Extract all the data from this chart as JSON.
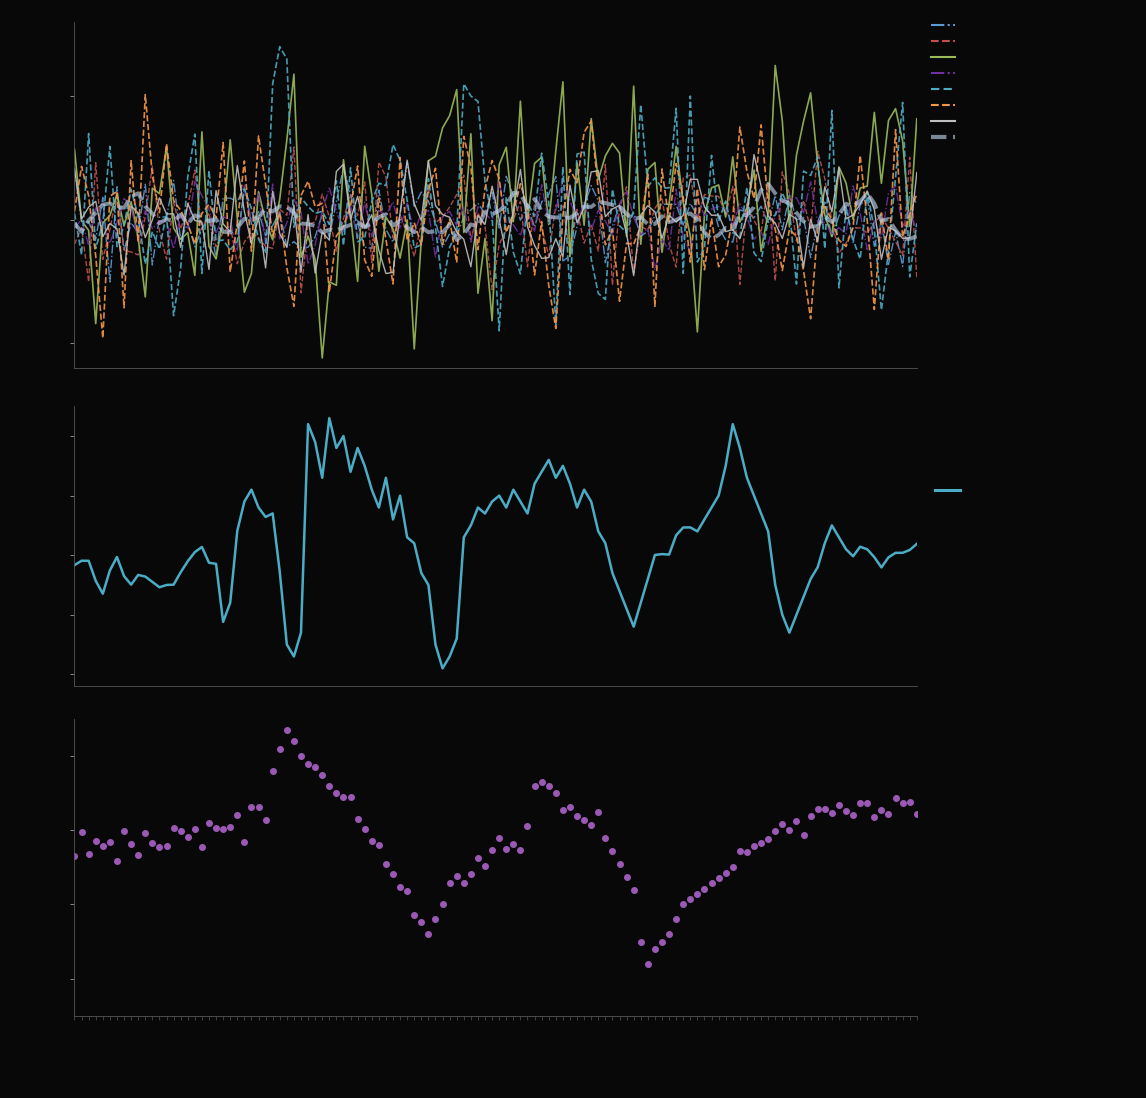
{
  "background_color": "#080808",
  "text_color": "#bbbbbb",
  "n_points": 120,
  "panel1_ylim": [
    -0.6,
    0.8
  ],
  "panel2_ylim": [
    -2.2,
    2.5
  ],
  "panel3_ylim": [
    -2.5,
    1.5
  ],
  "panel1_yticks": [
    -0.5,
    0.0,
    0.5
  ],
  "panel2_yticks": [
    -2.0,
    -1.0,
    0.0,
    1.0,
    2.0
  ],
  "panel3_yticks": [
    -2.0,
    -1.0,
    0.0,
    1.0
  ],
  "series_colors": [
    "#5b9bd5",
    "#c0504d",
    "#9bbb59",
    "#7030a0",
    "#4bacc6",
    "#f79646",
    "#c0c0c0",
    "#b8cce4"
  ],
  "series_linestyles": [
    "dashdot",
    "dashed",
    "solid",
    "dashdot",
    "dashed",
    "dashed",
    "solid",
    "dashed"
  ],
  "series_linewidths": [
    1.0,
    1.0,
    1.2,
    1.0,
    1.2,
    1.2,
    1.0,
    2.8
  ],
  "series_alphas": [
    0.9,
    0.9,
    0.9,
    0.9,
    0.9,
    0.9,
    0.9,
    0.65
  ],
  "total_color": "#4bacc6",
  "total_linewidth": 1.8,
  "purple_color": "#9b59b6",
  "purple_markersize": 4,
  "tick_fontsize": 7,
  "spine_color": "#555555",
  "legend_colors": [
    "#5b9bd5",
    "#c0504d",
    "#9bbb59",
    "#7030a0",
    "#4bacc6",
    "#f79646",
    "#c0c0c0",
    "#b8cce4"
  ],
  "legend_linestyles": [
    "dashdot",
    "dashed",
    "solid",
    "dashdot",
    "dashed",
    "dashed",
    "solid",
    "dashed"
  ]
}
